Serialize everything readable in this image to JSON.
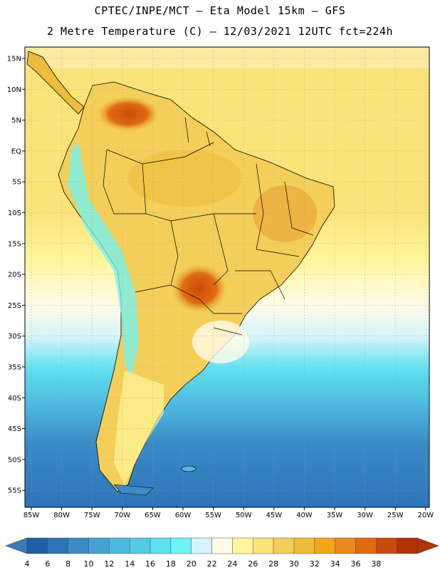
{
  "title_line1": "CPTEC/INPE/MCT –  Eta Model 15km – GFS",
  "title_line2": "2 Metre Temperature (C) – 12/03/2021 12UTC fct=224h",
  "lat_ticks": [
    "15N",
    "10N",
    "5N",
    "EQ",
    "5S",
    "10S",
    "15S",
    "20S",
    "25S",
    "30S",
    "35S",
    "40S",
    "45S",
    "50S",
    "55S"
  ],
  "lon_ticks": [
    "85W",
    "80W",
    "75W",
    "70W",
    "65W",
    "60W",
    "55W",
    "50W",
    "45W",
    "40W",
    "35W",
    "30W",
    "25W",
    "20W"
  ],
  "colorbar": {
    "labels": [
      "4",
      "6",
      "8",
      "10",
      "12",
      "14",
      "16",
      "18",
      "20",
      "22",
      "24",
      "26",
      "28",
      "30",
      "32",
      "34",
      "36",
      "38"
    ],
    "colors": [
      "#1f5fa8",
      "#2e74b8",
      "#3a8bc6",
      "#45a2d3",
      "#4fb8df",
      "#55cbe6",
      "#5ee0ee",
      "#6ff3f7",
      "#d6f5fb",
      "#fffbe8",
      "#fff59a",
      "#fae47a",
      "#f3cf5a",
      "#eebc3c",
      "#f3a51a",
      "#ea8a1c",
      "#e06a10",
      "#c84a0a",
      "#b03408"
    ],
    "low_color": "#3d7ab8",
    "high_color": "#b03408"
  }
}
